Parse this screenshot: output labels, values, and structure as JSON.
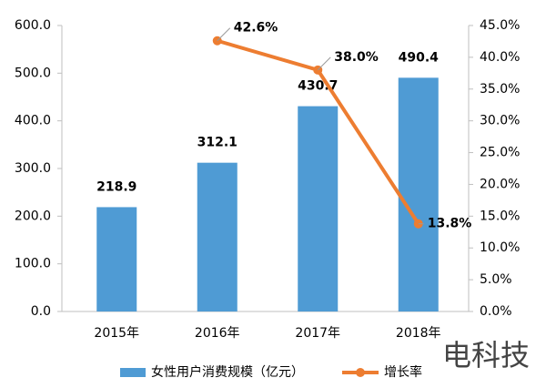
{
  "chart_data": {
    "type": "bar",
    "categories": [
      "2015年",
      "2016年",
      "2017年",
      "2018年"
    ],
    "series": [
      {
        "name": "女性用户消费规模（亿元）",
        "type": "bar",
        "color": "#4f9bd4",
        "values": [
          218.9,
          312.1,
          430.7,
          490.4
        ]
      },
      {
        "name": "增长率",
        "type": "line",
        "axis": "y2",
        "color": "#ed7d31",
        "values": [
          null,
          42.6,
          38.0,
          13.8
        ],
        "value_labels": [
          null,
          "42.6%",
          "38.0%",
          "13.8%"
        ]
      }
    ],
    "ylim": [
      0,
      600
    ],
    "yticks": [
      {
        "value": 0,
        "label": "0.0"
      },
      {
        "value": 100,
        "label": "100.0"
      },
      {
        "value": 200,
        "label": "200.0"
      },
      {
        "value": 300,
        "label": "300.0"
      },
      {
        "value": 400,
        "label": "400.0"
      },
      {
        "value": 500,
        "label": "500.0"
      },
      {
        "value": 600,
        "label": "600.0"
      }
    ],
    "y2lim": [
      0,
      45
    ],
    "y2ticks": [
      {
        "value": 0,
        "label": "0.0%"
      },
      {
        "value": 5,
        "label": "5.0%"
      },
      {
        "value": 10,
        "label": "10.0%"
      },
      {
        "value": 15,
        "label": "15.0%"
      },
      {
        "value": 20,
        "label": "20.0%"
      },
      {
        "value": 25,
        "label": "25.0%"
      },
      {
        "value": 30,
        "label": "30.0%"
      },
      {
        "value": 35,
        "label": "35.0%"
      },
      {
        "value": 40,
        "label": "40.0%"
      },
      {
        "value": 45,
        "label": "45.0%"
      }
    ],
    "grid": false,
    "legend": "bottom",
    "watermark": "电科技"
  }
}
